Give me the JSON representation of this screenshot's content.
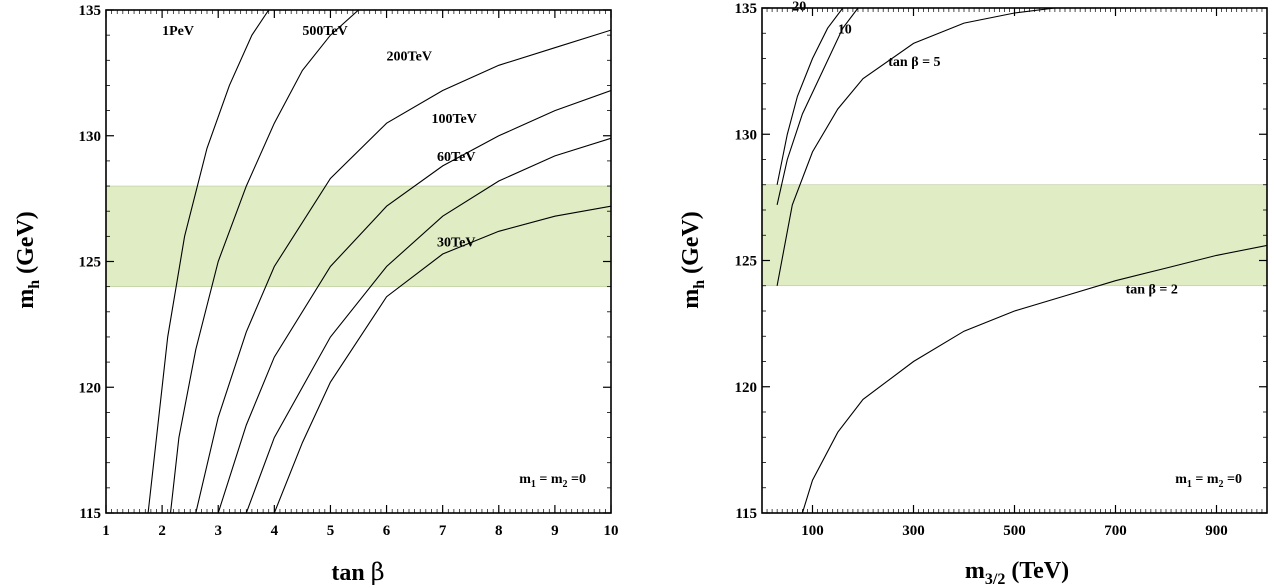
{
  "chart_data": [
    {
      "type": "line",
      "xlabel": "tan β",
      "ylabel": "m_h (GeV)",
      "xlim": [
        1,
        10
      ],
      "ylim": [
        115,
        135
      ],
      "x_ticks": [
        "1",
        "2",
        "3",
        "4",
        "5",
        "6",
        "7",
        "8",
        "9",
        "10"
      ],
      "y_ticks": [
        "115",
        "120",
        "125",
        "130",
        "135"
      ],
      "band": {
        "y": [
          124,
          128
        ],
        "color": "#e0ecc4"
      },
      "annotation": "m1 = m2 =0",
      "series": [
        {
          "name": "1PeV",
          "x": [
            1.75,
            1.9,
            2.1,
            2.4,
            2.8,
            3.2,
            3.6,
            3.9
          ],
          "y": [
            115,
            118,
            122,
            126,
            129.5,
            132,
            134,
            135
          ]
        },
        {
          "name": "500TeV",
          "x": [
            2.15,
            2.3,
            2.6,
            3.0,
            3.5,
            4.0,
            4.5,
            5.0,
            5.5
          ],
          "y": [
            115,
            118,
            121.5,
            125,
            128,
            130.5,
            132.6,
            134,
            135
          ]
        },
        {
          "name": "200TeV",
          "x": [
            2.6,
            3.0,
            3.5,
            4.0,
            5.0,
            6.0,
            7.0,
            8.0,
            9.0,
            10.0
          ],
          "y": [
            115,
            118.8,
            122.2,
            124.8,
            128.3,
            130.5,
            131.8,
            132.8,
            133.5,
            134.2
          ]
        },
        {
          "name": "100TeV",
          "x": [
            3.0,
            3.5,
            4.0,
            5.0,
            6.0,
            7.0,
            8.0,
            9.0,
            10.0
          ],
          "y": [
            115,
            118.5,
            121.2,
            124.8,
            127.2,
            128.8,
            130,
            131,
            131.8
          ]
        },
        {
          "name": "60TeV",
          "x": [
            3.5,
            4.0,
            5.0,
            6.0,
            7.0,
            8.0,
            9.0,
            10.0
          ],
          "y": [
            115,
            118,
            122,
            124.8,
            126.8,
            128.2,
            129.2,
            129.9
          ]
        },
        {
          "name": "30TeV",
          "x": [
            4.0,
            4.5,
            5.0,
            6.0,
            7.0,
            8.0,
            9.0,
            10.0
          ],
          "y": [
            115,
            117.8,
            120.2,
            123.6,
            125.3,
            126.2,
            126.8,
            127.2
          ]
        }
      ]
    },
    {
      "type": "line",
      "xlabel": "m_3/2 (TeV)",
      "ylabel": "m_h (GeV)",
      "xlim": [
        0,
        1000
      ],
      "ylim": [
        115,
        135
      ],
      "x_ticks": [
        "100",
        "300",
        "500",
        "700",
        "900"
      ],
      "y_ticks": [
        "115",
        "120",
        "125",
        "130",
        "135"
      ],
      "band": {
        "y": [
          124,
          128
        ],
        "color": "#e0ecc4"
      },
      "annotation": "m1 = m2 =0",
      "series": [
        {
          "name": "20",
          "x": [
            30,
            50,
            70,
            100,
            130,
            160
          ],
          "y": [
            128,
            130,
            131.5,
            133,
            134.2,
            135
          ]
        },
        {
          "name": "10",
          "x": [
            30,
            50,
            80,
            120,
            160,
            190
          ],
          "y": [
            127.2,
            129,
            130.8,
            132.5,
            134.2,
            135
          ]
        },
        {
          "name": "tan β = 5",
          "x": [
            30,
            60,
            100,
            150,
            200,
            300,
            400,
            500,
            580
          ],
          "y": [
            124,
            127.2,
            129.3,
            131,
            132.2,
            133.6,
            134.4,
            134.8,
            135
          ]
        },
        {
          "name": "tan β = 2",
          "x": [
            80,
            100,
            150,
            200,
            300,
            400,
            500,
            600,
            700,
            800,
            900,
            1000
          ],
          "y": [
            115,
            116.3,
            118.2,
            119.5,
            121,
            122.2,
            123,
            123.6,
            124.2,
            124.7,
            125.2,
            125.6
          ]
        }
      ]
    }
  ]
}
